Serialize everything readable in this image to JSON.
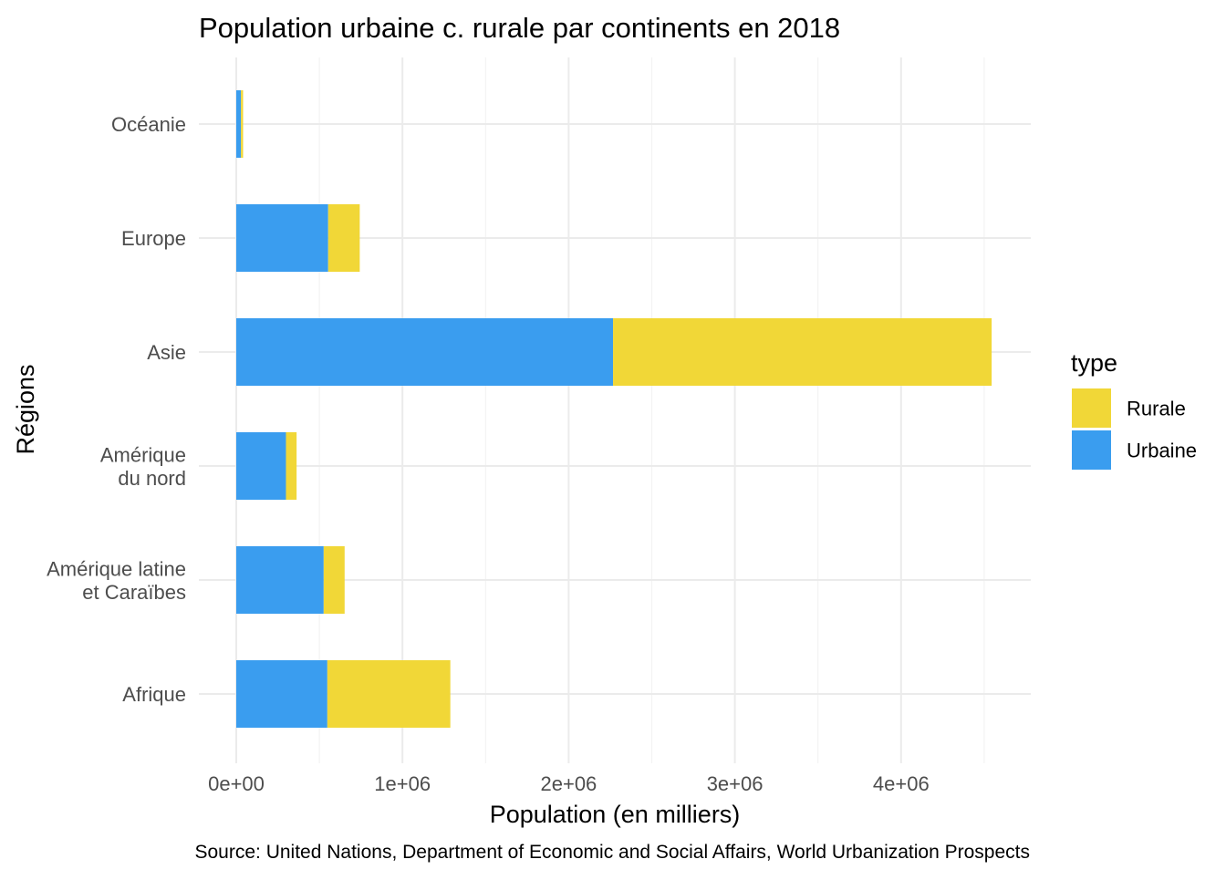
{
  "chart_data": {
    "type": "bar",
    "orientation": "horizontal",
    "stacked": true,
    "title": "Population urbaine c. rurale par continents en 2018",
    "xlabel": "Population (en milliers)",
    "ylabel": "Régions",
    "caption": "Source: United Nations, Department of Economic and Social Affairs, World Urbanization Prospects",
    "categories": [
      [
        "Afrique"
      ],
      [
        "Amérique latine",
        "et Caraïbes"
      ],
      [
        "Amérique",
        "du nord"
      ],
      [
        "Asie"
      ],
      [
        "Europe"
      ],
      [
        "Océanie"
      ]
    ],
    "series": [
      {
        "name": "Urbaine",
        "color": "#3a9def",
        "values": [
          548000,
          526000,
          299000,
          2267000,
          553000,
          28000
        ]
      },
      {
        "name": "Rurale",
        "color": "#f1d737",
        "values": [
          740000,
          126000,
          64000,
          2278000,
          190000,
          13000
        ]
      }
    ],
    "xlim": [
      0,
      4600000
    ],
    "x_ticks": [
      0,
      1000000,
      2000000,
      3000000,
      4000000
    ],
    "x_tick_labels": [
      "0e+00",
      "1e+06",
      "2e+06",
      "3e+06",
      "4e+06"
    ],
    "grid": true,
    "legend": {
      "title": "type",
      "position": "right",
      "entries": [
        {
          "name": "Rurale",
          "color": "#f1d737"
        },
        {
          "name": "Urbaine",
          "color": "#3a9def"
        }
      ]
    }
  }
}
